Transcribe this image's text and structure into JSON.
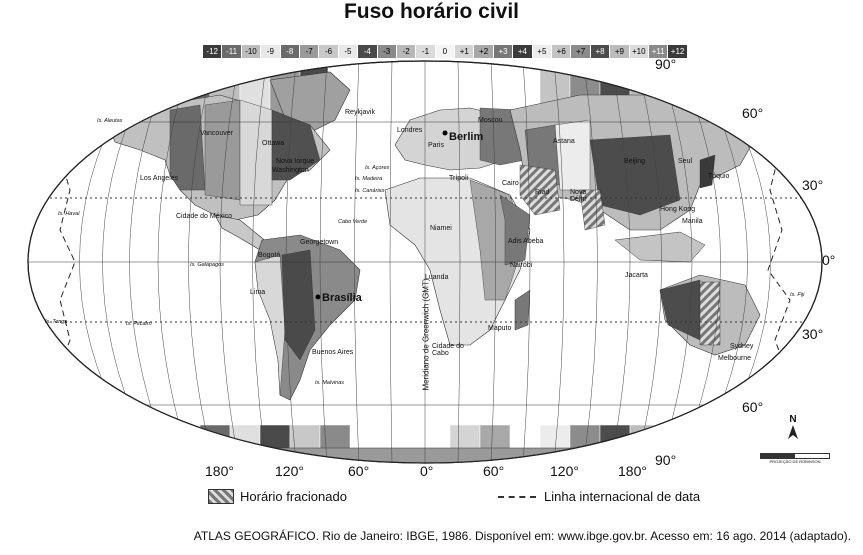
{
  "title": "Fuso horário civil",
  "scale": [
    {
      "label": "-12",
      "color": "#3a3a3a",
      "text": "#fff"
    },
    {
      "label": "-11",
      "color": "#6a6a6a",
      "text": "#fff"
    },
    {
      "label": "-10",
      "color": "#bdbdbd",
      "text": "#000"
    },
    {
      "label": "-9",
      "color": "#e8e8e8",
      "text": "#000"
    },
    {
      "label": "-8",
      "color": "#6a6a6a",
      "text": "#fff"
    },
    {
      "label": "-7",
      "color": "#9a9a9a",
      "text": "#000"
    },
    {
      "label": "-6",
      "color": "#c8c8c8",
      "text": "#000"
    },
    {
      "label": "-5",
      "color": "#e8e8e8",
      "text": "#000"
    },
    {
      "label": "-4",
      "color": "#4a4a4a",
      "text": "#fff"
    },
    {
      "label": "-3",
      "color": "#8a8a8a",
      "text": "#000"
    },
    {
      "label": "-2",
      "color": "#b8b8b8",
      "text": "#000"
    },
    {
      "label": "-1",
      "color": "#dadada",
      "text": "#000"
    },
    {
      "label": "0",
      "color": "#f4f4f4",
      "text": "#000"
    },
    {
      "label": "+1",
      "color": "#d4d4d4",
      "text": "#000"
    },
    {
      "label": "+2",
      "color": "#a8a8a8",
      "text": "#000"
    },
    {
      "label": "+3",
      "color": "#787878",
      "text": "#fff"
    },
    {
      "label": "+4",
      "color": "#3a3a3a",
      "text": "#fff"
    },
    {
      "label": "+5",
      "color": "#ececec",
      "text": "#000"
    },
    {
      "label": "+6",
      "color": "#c4c4c4",
      "text": "#000"
    },
    {
      "label": "+7",
      "color": "#8c8c8c",
      "text": "#000"
    },
    {
      "label": "+8",
      "color": "#4c4c4c",
      "text": "#fff"
    },
    {
      "label": "+9",
      "color": "#bcbcbc",
      "text": "#000"
    },
    {
      "label": "+10",
      "color": "#dcdcdc",
      "text": "#000"
    },
    {
      "label": "+11",
      "color": "#8a8a8a",
      "text": "#fff"
    },
    {
      "label": "+12",
      "color": "#3a3a3a",
      "text": "#fff"
    }
  ],
  "lat_labels": {
    "n90": "90°",
    "n60": "60°",
    "n30": "30°",
    "eq": "0°",
    "s30": "30°",
    "s60": "60°",
    "s90": "90°"
  },
  "lon_labels": {
    "w180": "180°",
    "w120": "120°",
    "w60": "60°",
    "zero": "0°",
    "e60": "60°",
    "e120": "120°",
    "e180": "180°"
  },
  "meridian_label": "Meridiano  de  Greenwich (GMT)",
  "cities": {
    "brasilia": "Brasília",
    "berlim": "Berlim",
    "reykjavik": "Reykjavik",
    "moscou": "Moscou",
    "londres": "Londres",
    "paris": "Paris",
    "ottawa": "Ottawa",
    "nova_iorque": "Nova Iorque",
    "washington": "Washington",
    "los_angeles": "Los Angeles",
    "vancouver": "Vancouver",
    "cidade_mexico": "Cidade do México",
    "georgetown": "Georgetown",
    "bogota": "Bogotá",
    "lima": "Lima",
    "buenos_aires": "Buenos Aires",
    "tripoli": "Trípoli",
    "cairo": "Cairo",
    "niamei": "Niamei",
    "adis_abeba": "Adis Abeba",
    "nairobi": "Nairóbi",
    "luanda": "Luanda",
    "maputo": "Maputo",
    "cidade_cabo": "Cidade do Cabo",
    "riad": "Riad",
    "astana": "Astana",
    "nova_delhi": "Nova Délhi",
    "beijing": "Beijing",
    "seul": "Seul",
    "toquio": "Tóquio",
    "hong_kong": "Hong Kong",
    "manila": "Manila",
    "jacarta": "Jacarta",
    "sydney": "Sydney",
    "melbourne": "Melbourne"
  },
  "islands": {
    "aleutas": "Is. Aleutas",
    "havai": "Is. Havaí",
    "galapagos": "Is. Galápagos",
    "tonga": "Is. Tonga",
    "pitcairn": "Is. Pitcairn",
    "malvinas": "Is. Malvinas",
    "acores": "Is. Açores",
    "madeira": "Is. Madeira",
    "canarias": "Is. Canárias",
    "cabo_verde": "Cabo Verde",
    "fiji": "Is. Fiji"
  },
  "legend": {
    "fractional": "Horário fracionado",
    "dateline": "Linha internacional de data"
  },
  "north": "N",
  "projection": "PROJEÇÃO DE ROBINSON",
  "citation": "ATLAS GEOGRÁFICO. Rio de Janeiro: IBGE, 1986. Disponível em: www.ibge.gov.br. Acesso em: 16 ago. 2014 (adaptado)."
}
